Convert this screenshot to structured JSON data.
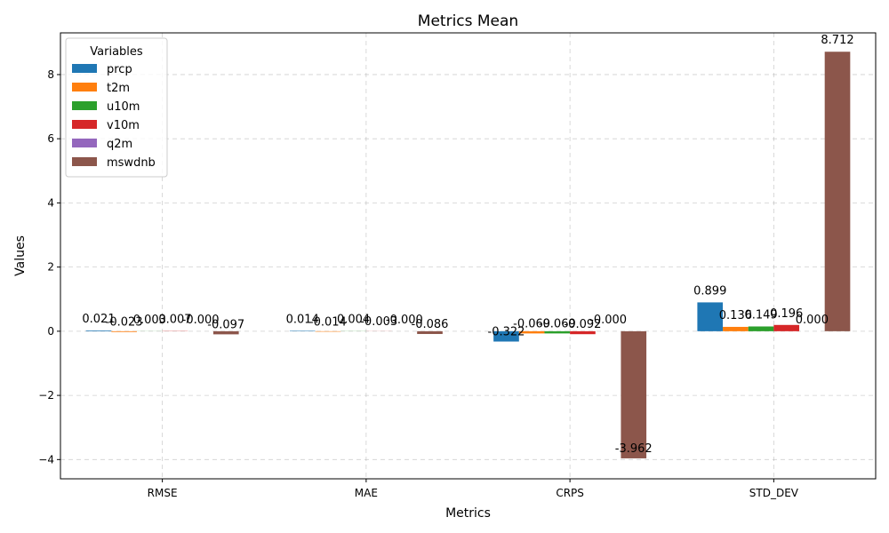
{
  "chart_data": {
    "type": "bar",
    "title": "Metrics Mean",
    "xlabel": "Metrics",
    "ylabel": "Values",
    "categories": [
      "RMSE",
      "MAE",
      "CRPS",
      "STD_DEV"
    ],
    "ylim": [
      -4.6,
      9.3
    ],
    "yticks": [
      -4,
      -2,
      0,
      2,
      4,
      6,
      8
    ],
    "grid": true,
    "legend_title": "Variables",
    "legend_position": "top-left",
    "series": [
      {
        "name": "prcp",
        "color": "#1f77b4",
        "values": [
          0.021,
          0.014,
          -0.322,
          0.899
        ],
        "labels": [
          "0.021",
          "0.014",
          "-0.322",
          "0.899"
        ]
      },
      {
        "name": "t2m",
        "color": "#ff7f0e",
        "values": [
          -0.023,
          -0.014,
          -0.069,
          0.136
        ],
        "labels": [
          "-0.023",
          "-0.014",
          "-0.069",
          "0.136"
        ]
      },
      {
        "name": "u10m",
        "color": "#2ca02c",
        "values": [
          0.003,
          0.004,
          -0.069,
          0.149
        ],
        "labels": [
          "0.003",
          "0.004",
          "-0.069",
          "0.149"
        ]
      },
      {
        "name": "v10m",
        "color": "#d62728",
        "values": [
          0.007,
          -0.003,
          -0.092,
          0.196
        ],
        "labels": [
          "0.007",
          "-0.003",
          "-0.092",
          "0.196"
        ]
      },
      {
        "name": "q2m",
        "color": "#9467bd",
        "values": [
          0.0,
          0.0,
          -0.0,
          0.0
        ],
        "labels": [
          "-0.000",
          "-0.000",
          "-0.000",
          "0.000"
        ]
      },
      {
        "name": "mswdnb",
        "color": "#8c564b",
        "values": [
          -0.097,
          -0.086,
          -3.962,
          8.712
        ],
        "labels": [
          "-0.097",
          "-0.086",
          "-3.962",
          "8.712"
        ]
      }
    ]
  }
}
